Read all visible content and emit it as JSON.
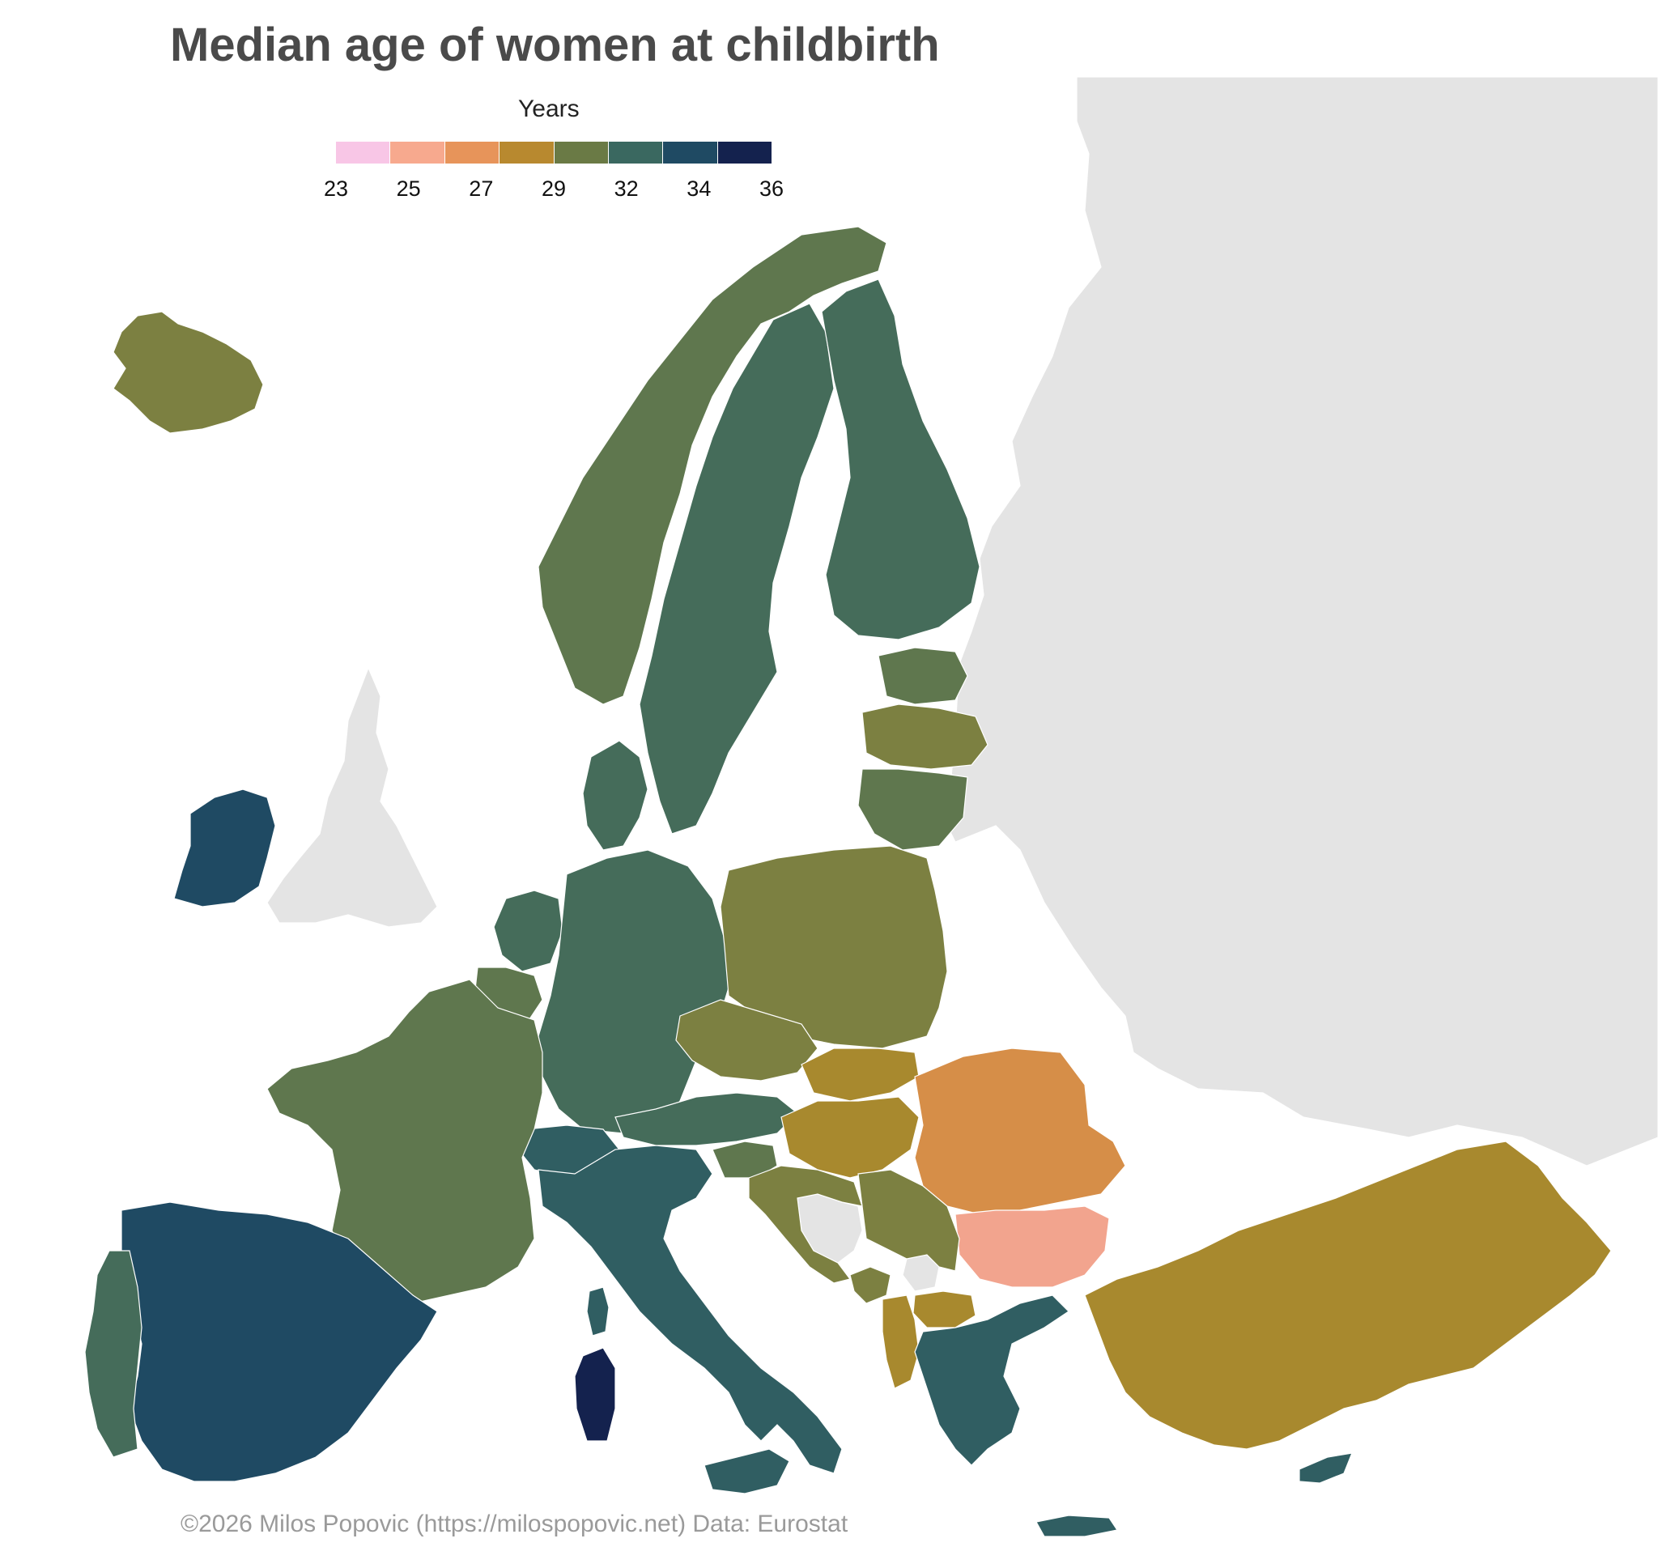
{
  "title": "Median age of women at childbirth",
  "legend": {
    "title": "Years",
    "ticks": [
      "23",
      "25",
      "27",
      "29",
      "32",
      "34",
      "36"
    ],
    "colors": [
      "#f8c6e6",
      "#f7a98e",
      "#e7945a",
      "#b8892f",
      "#6a7a45",
      "#3a6860",
      "#1f4a63",
      "#14224e"
    ]
  },
  "palette": {
    "no_data": "#e4e4e4",
    "border": "#ffffff",
    "sea": "#ffffff",
    "age_23": "#f8c6e6",
    "age_25": "#f2a48e",
    "age_27": "#d68e48",
    "age_29": "#a8892e",
    "age_30": "#7c8041",
    "age_31": "#5f774e",
    "age_32": "#456c5a",
    "age_33": "#305e62",
    "age_34": "#1f4a63",
    "age_36": "#14224e"
  },
  "regions": [
    {
      "name": "Iceland",
      "value_class": "age_30"
    },
    {
      "name": "Ireland",
      "value_class": "age_34"
    },
    {
      "name": "Norway",
      "value_class": "age_31"
    },
    {
      "name": "Sweden",
      "value_class": "age_32"
    },
    {
      "name": "Finland",
      "value_class": "age_32"
    },
    {
      "name": "Estonia",
      "value_class": "age_31"
    },
    {
      "name": "Latvia",
      "value_class": "age_30"
    },
    {
      "name": "Lithuania",
      "value_class": "age_31"
    },
    {
      "name": "Denmark",
      "value_class": "age_32"
    },
    {
      "name": "Netherlands",
      "value_class": "age_32"
    },
    {
      "name": "Belgium",
      "value_class": "age_31"
    },
    {
      "name": "Germany",
      "value_class": "age_32"
    },
    {
      "name": "Poland",
      "value_class": "age_30"
    },
    {
      "name": "Czechia",
      "value_class": "age_30"
    },
    {
      "name": "Slovakia",
      "value_class": "age_29"
    },
    {
      "name": "Austria",
      "value_class": "age_32"
    },
    {
      "name": "Switzerland",
      "value_class": "age_33"
    },
    {
      "name": "France",
      "value_class": "age_31"
    },
    {
      "name": "Spain",
      "value_class": "age_34"
    },
    {
      "name": "Portugal",
      "value_class": "age_32"
    },
    {
      "name": "Italy",
      "value_class": "age_33"
    },
    {
      "name": "Sardinia",
      "value_class": "age_36"
    },
    {
      "name": "Sicily",
      "value_class": "age_33"
    },
    {
      "name": "Corsica",
      "value_class": "age_33"
    },
    {
      "name": "Slovenia",
      "value_class": "age_31"
    },
    {
      "name": "Croatia",
      "value_class": "age_30"
    },
    {
      "name": "Hungary",
      "value_class": "age_29"
    },
    {
      "name": "Romania",
      "value_class": "age_27"
    },
    {
      "name": "Bulgaria",
      "value_class": "age_25"
    },
    {
      "name": "Serbia",
      "value_class": "age_30"
    },
    {
      "name": "Montenegro",
      "value_class": "age_30"
    },
    {
      "name": "North Macedonia",
      "value_class": "age_29"
    },
    {
      "name": "Albania",
      "value_class": "age_29"
    },
    {
      "name": "Greece",
      "value_class": "age_33"
    },
    {
      "name": "Crete",
      "value_class": "age_33"
    },
    {
      "name": "Cyprus",
      "value_class": "age_33"
    },
    {
      "name": "Turkey",
      "value_class": "age_29"
    },
    {
      "name": "Bosnia and Herzegovina",
      "value_class": "no_data"
    },
    {
      "name": "Kosovo",
      "value_class": "no_data"
    },
    {
      "name": "United Kingdom",
      "value_class": "no_data"
    },
    {
      "name": "Eastern Europe",
      "value_class": "no_data"
    }
  ],
  "credit": "©2026 Milos Popovic (https://milospopovic.net) Data: Eurostat"
}
